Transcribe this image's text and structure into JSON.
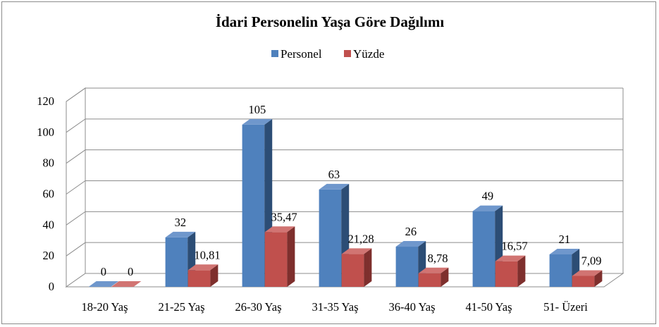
{
  "chart_data": {
    "type": "bar",
    "title": "İdari Personelin Yaşa Göre Dağılımı",
    "categories": [
      "18-20 Yaş",
      "21-25 Yaş",
      "26-30 Yaş",
      "31-35 Yaş",
      "36-40 Yaş",
      "41-50 Yaş",
      "51- Üzeri"
    ],
    "series": [
      {
        "name": "Personel",
        "values": [
          0,
          32,
          105,
          63,
          26,
          49,
          21
        ],
        "labels": [
          "0",
          "32",
          "105",
          "63",
          "26",
          "49",
          "21"
        ]
      },
      {
        "name": "Yüzde",
        "values": [
          0,
          10.81,
          35.47,
          21.28,
          8.78,
          16.57,
          7.09
        ],
        "labels": [
          "0",
          "10,81",
          "35,47",
          "21,28",
          "8,78",
          "16,57",
          "7,09"
        ]
      }
    ],
    "yticks": [
      "0",
      "20",
      "40",
      "60",
      "80",
      "100",
      "120"
    ],
    "ylim": [
      0,
      120
    ],
    "legend_position": "top",
    "grid": true,
    "style": "3d-clustered-column",
    "colors": {
      "Personel": {
        "front": "#4f81bd",
        "side": "#2c4d75",
        "top": "#6f97cc"
      },
      "Yüzde": {
        "front": "#c0504d",
        "side": "#7e2f2d",
        "top": "#d17472"
      }
    }
  }
}
